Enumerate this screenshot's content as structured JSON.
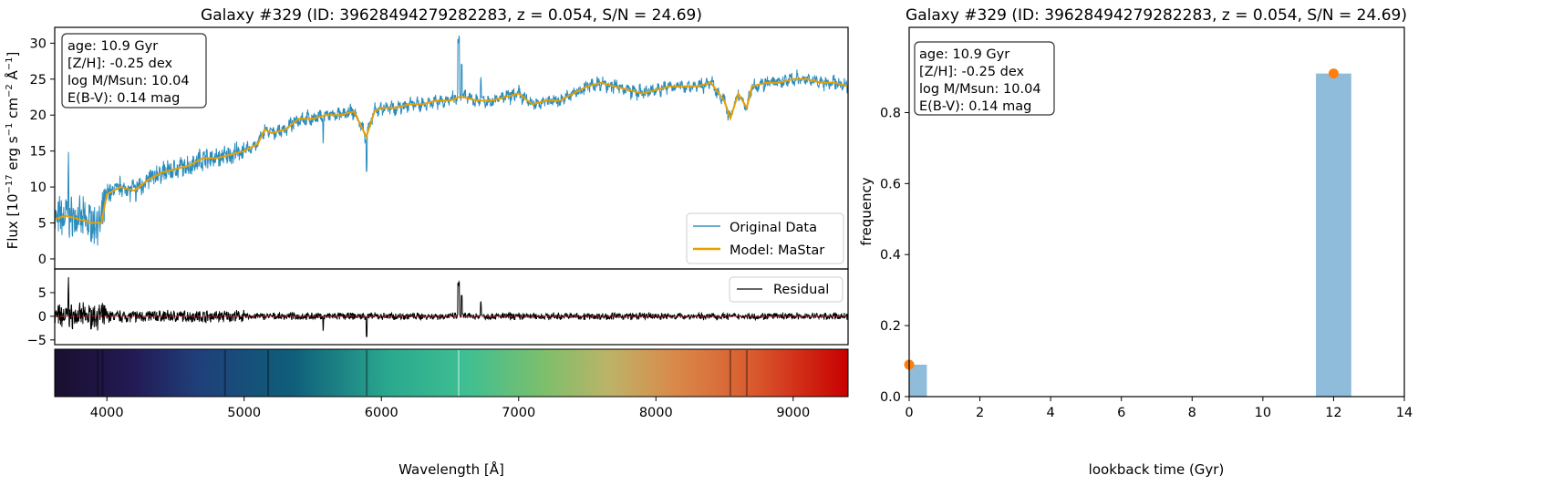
{
  "chart_data": [
    {
      "type": "line",
      "title": "Galaxy #329 (ID: 39628494279282283, z = 0.054, S/N = 24.69)",
      "panels": {
        "spectrum": {
          "ylabel": "Flux [10$^{-17}$ erg s$^{-1}$ cm$^{-2}$ Å$^{-1}$]",
          "ylabel_parts": [
            "Flux [10",
            "−17",
            " erg s",
            "−1",
            " cm",
            "−2",
            " Å",
            "−1",
            "]"
          ],
          "xlim": [
            3620,
            9400
          ],
          "ylim": [
            -1.4,
            32.2
          ],
          "yticks": [
            0,
            5,
            10,
            15,
            20,
            25,
            30
          ],
          "ytick_labels": [
            "0",
            "5",
            "10",
            "15",
            "20",
            "25",
            "30"
          ],
          "series": [
            {
              "name": "Original Data",
              "color": "#2b8cbe"
            },
            {
              "name": "Model: MaStar",
              "color": "#e69f00",
              "x": [
                3620,
                3700,
                3800,
                3900,
                3960,
                4000,
                4100,
                4200,
                4300,
                4400,
                4500,
                4600,
                4700,
                4800,
                4900,
                5000,
                5100,
                5150,
                5200,
                5300,
                5400,
                5500,
                5600,
                5700,
                5800,
                5890,
                5950,
                6000,
                6100,
                6200,
                6300,
                6400,
                6500,
                6563,
                6600,
                6700,
                6800,
                6900,
                7000,
                7100,
                7200,
                7300,
                7400,
                7500,
                7600,
                7700,
                7800,
                7900,
                8000,
                8100,
                8200,
                8300,
                8400,
                8498,
                8542,
                8600,
                8662,
                8700,
                8800,
                8900,
                9000,
                9100,
                9200,
                9300,
                9400
              ],
              "y": [
                5.5,
                6,
                5.5,
                5,
                5,
                9,
                10,
                9.5,
                11,
                12,
                12.5,
                13,
                14,
                14,
                14.5,
                15,
                16,
                18,
                17.5,
                18,
                19.5,
                19.5,
                20,
                20,
                20.5,
                17,
                20.5,
                21,
                21,
                21.5,
                21.5,
                22,
                22,
                22.5,
                22.5,
                22,
                22,
                22.5,
                23,
                21.5,
                22,
                22,
                23,
                24,
                24.5,
                24,
                23.5,
                23,
                23.5,
                24,
                24,
                24,
                24.5,
                22,
                19.5,
                23,
                21,
                24,
                24.5,
                24.5,
                25,
                25,
                24.5,
                24.5,
                24
              ]
            }
          ],
          "legend": "lower-right",
          "annotation": [
            "age: 10.9 Gyr",
            "[Z/H]: -0.25 dex",
            "log M/Msun: 10.04",
            "E(B-V): 0.14 mag"
          ]
        },
        "residual": {
          "ylim": [
            -6,
            10
          ],
          "yticks": [
            -5,
            0,
            5
          ],
          "ytick_labels": [
            "−5",
            "0",
            "5"
          ],
          "series": [
            {
              "name": "Residual",
              "color": "#000000"
            }
          ],
          "zero_line_color": "#d62728",
          "legend": "upper-right"
        },
        "colorbar": {
          "xlabel": "Wavelength [Å]",
          "xticks": [
            4000,
            5000,
            6000,
            7000,
            8000,
            9000
          ],
          "xtick_labels": [
            "4000",
            "5000",
            "6000",
            "7000",
            "8000",
            "9000"
          ]
        }
      }
    },
    {
      "type": "bar",
      "title": "Galaxy #329 (ID: 39628494279282283, z = 0.054, S/N = 24.69)",
      "xlabel": "lookback time (Gyr)",
      "ylabel": "frequency",
      "xlim": [
        0,
        14
      ],
      "ylim": [
        0,
        1.04
      ],
      "xticks": [
        0,
        2,
        4,
        6,
        8,
        10,
        12,
        14
      ],
      "xtick_labels": [
        "0",
        "2",
        "4",
        "6",
        "8",
        "10",
        "12",
        "14"
      ],
      "yticks": [
        0,
        0.2,
        0.4,
        0.6,
        0.8
      ],
      "ytick_labels": [
        "0.0",
        "0.2",
        "0.4",
        "0.6",
        "0.8"
      ],
      "bars": [
        {
          "x0": 0,
          "x1": 0.5,
          "value": 0.09
        },
        {
          "x0": 11.5,
          "x1": 12.5,
          "value": 0.91
        }
      ],
      "points": [
        {
          "x": 0,
          "y": 0.09
        },
        {
          "x": 12,
          "y": 0.91
        }
      ],
      "bar_color": "#8fbcdb",
      "point_color": "#ff7f0e",
      "annotation": [
        "age: 10.9 Gyr",
        "[Z/H]: -0.25 dex",
        "log M/Msun: 10.04",
        "E(B-V): 0.14 mag"
      ]
    }
  ]
}
